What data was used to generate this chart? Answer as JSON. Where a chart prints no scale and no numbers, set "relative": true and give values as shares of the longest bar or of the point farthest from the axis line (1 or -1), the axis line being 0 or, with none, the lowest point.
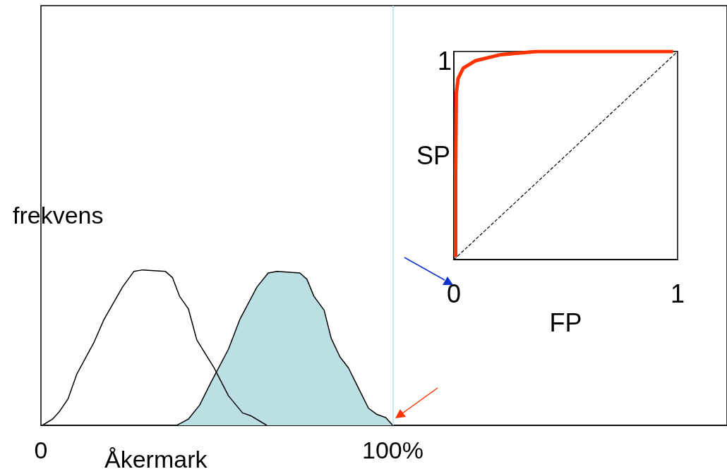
{
  "chart_data": [
    {
      "type": "area",
      "xlabel": "Åkermark",
      "ylabel": "frekvens",
      "relative": true,
      "xlim": [
        0,
        195
      ],
      "xticks": [
        {
          "value": 0,
          "label": "0"
        },
        {
          "value": 100,
          "label": "100%"
        }
      ],
      "series": [
        {
          "type": "line",
          "color": "#000000",
          "x": [
            0.4,
            3.3,
            5.3,
            7.7,
            10.2,
            15.0,
            17.9,
            23.2,
            26.4,
            28.9,
            35.4,
            37.4,
            39.4,
            41.9,
            44.3,
            49.2,
            53.3,
            57.3,
            59.8,
            64.2
          ],
          "values": [
            0,
            0.04,
            0.09,
            0.17,
            0.33,
            0.53,
            0.68,
            0.89,
            0.99,
            1.0,
            0.99,
            0.95,
            0.83,
            0.75,
            0.55,
            0.37,
            0.19,
            0.08,
            0.06,
            0
          ]
        },
        {
          "color": "#bbdfe3",
          "x": [
            38.6,
            41.9,
            45.1,
            48.4,
            53.3,
            56.5,
            61.4,
            64.6,
            67.1,
            73.6,
            75.6,
            77.6,
            80.5,
            82.5,
            85.0,
            87.4,
            89.8,
            93.1,
            95.5,
            98.0,
            100
          ],
          "values": [
            0,
            0.04,
            0.13,
            0.28,
            0.49,
            0.68,
            0.89,
            0.98,
            0.99,
            0.98,
            0.94,
            0.83,
            0.74,
            0.56,
            0.44,
            0.37,
            0.26,
            0.11,
            0.07,
            0.05,
            0
          ]
        }
      ],
      "ref_lines": [
        {
          "axis": "x",
          "value": 100,
          "color": "#b9dfe3"
        }
      ]
    },
    {
      "type": "line",
      "xlabel": "FP",
      "ylabel": "SP",
      "xlim": [
        0,
        1
      ],
      "relative": true,
      "xticks": [
        0,
        1
      ],
      "annotations": [
        "1"
      ],
      "series": [
        {
          "color": "#ff3300",
          "x": [
            0.008,
            0.008,
            0.011,
            0.019,
            0.042,
            0.095,
            0.21,
            0.37,
            0.58,
            0.79,
            0.98
          ],
          "values": [
            0.013,
            0.4,
            0.8,
            0.87,
            0.92,
            0.955,
            0.985,
            1.0,
            1.0,
            1.0,
            1.0
          ]
        },
        {
          "color": "#000000",
          "line_style": "dashed",
          "x": [
            0,
            1
          ],
          "values": [
            0,
            1
          ]
        }
      ]
    }
  ]
}
